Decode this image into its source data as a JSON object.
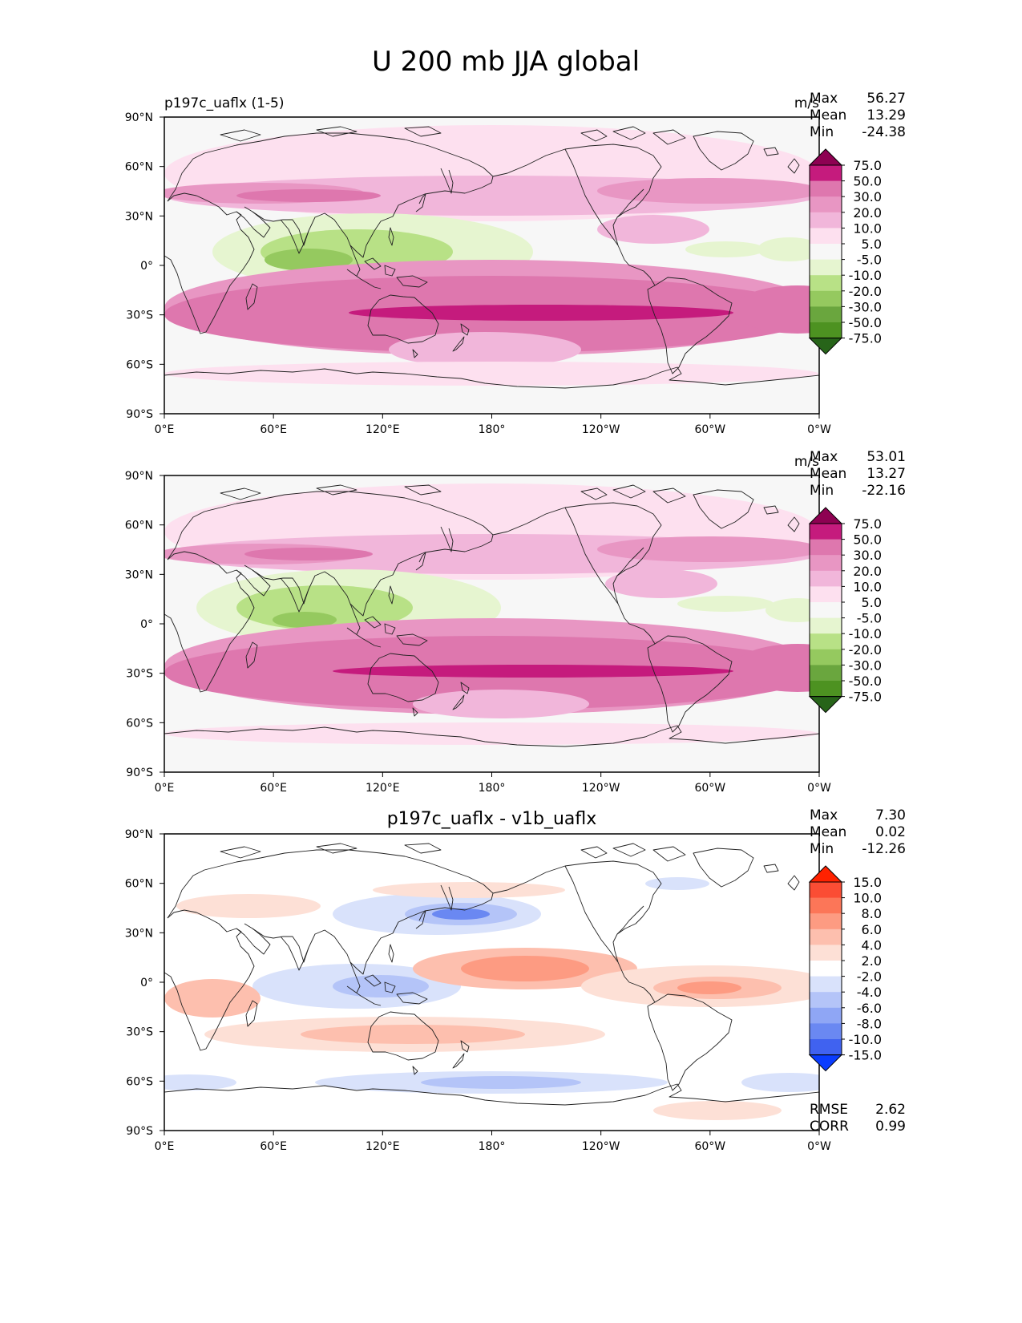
{
  "figure": {
    "title": "U 200 mb JJA global"
  },
  "axes": {
    "lat_ticks": [
      "90°N",
      "60°N",
      "30°N",
      "0°",
      "30°S",
      "60°S",
      "90°S"
    ],
    "lon_ticks": [
      "0°E",
      "60°E",
      "120°E",
      "180°",
      "120°W",
      "60°W",
      "0°W"
    ]
  },
  "panels": [
    {
      "title_left": "p197c_uaflx (1-5)",
      "title_center": "",
      "units": "m/s",
      "stats": [
        {
          "label": "Max",
          "value": "56.27"
        },
        {
          "label": "Mean",
          "value": "13.29"
        },
        {
          "label": "Min",
          "value": "-24.38"
        }
      ],
      "colorbar": {
        "labels": [
          "75.0",
          "50.0",
          "30.0",
          "20.0",
          "10.0",
          "5.0",
          "-5.0",
          "-10.0",
          "-20.0",
          "-30.0",
          "-50.0",
          "-75.0"
        ],
        "colors": [
          "#8e0152",
          "#c51b7d",
          "#de77ae",
          "#e896c3",
          "#f1b6da",
          "#fde0ef",
          "#f7f7f7",
          "#e6f5d0",
          "#b8e186",
          "#95c95f",
          "#6aa63e",
          "#4d9221",
          "#276419"
        ]
      },
      "footer": []
    },
    {
      "title_left": "",
      "title_center": "",
      "units": "m/s",
      "stats": [
        {
          "label": "Max",
          "value": "53.01"
        },
        {
          "label": "Mean",
          "value": "13.27"
        },
        {
          "label": "Min",
          "value": "-22.16"
        }
      ],
      "colorbar": {
        "labels": [
          "75.0",
          "50.0",
          "30.0",
          "20.0",
          "10.0",
          "5.0",
          "-5.0",
          "-10.0",
          "-20.0",
          "-30.0",
          "-50.0",
          "-75.0"
        ],
        "colors": [
          "#8e0152",
          "#c51b7d",
          "#de77ae",
          "#e896c3",
          "#f1b6da",
          "#fde0ef",
          "#f7f7f7",
          "#e6f5d0",
          "#b8e186",
          "#95c95f",
          "#6aa63e",
          "#4d9221",
          "#276419"
        ]
      },
      "footer": []
    },
    {
      "title_left": "",
      "title_center": "p197c_uaflx - v1b_uaflx",
      "units": "",
      "stats": [
        {
          "label": "Max",
          "value": "7.30"
        },
        {
          "label": "Mean",
          "value": "0.02"
        },
        {
          "label": "Min",
          "value": "-12.26"
        }
      ],
      "colorbar": {
        "labels": [
          "15.0",
          "10.0",
          "8.0",
          "6.0",
          "4.0",
          "2.0",
          "-2.0",
          "-4.0",
          "-6.0",
          "-8.0",
          "-10.0",
          "-15.0"
        ],
        "colors": [
          "#ff2200",
          "#fb4d34",
          "#fc7658",
          "#fd9b82",
          "#fdbfae",
          "#fde0d6",
          "#ffffff",
          "#d9e2fb",
          "#b4c4f8",
          "#8fa6f5",
          "#6a88f2",
          "#4062f0",
          "#0a3cff"
        ]
      },
      "footer": [
        {
          "label": "RMSE",
          "value": "2.62"
        },
        {
          "label": "CORR",
          "value": "0.99"
        }
      ]
    }
  ]
}
